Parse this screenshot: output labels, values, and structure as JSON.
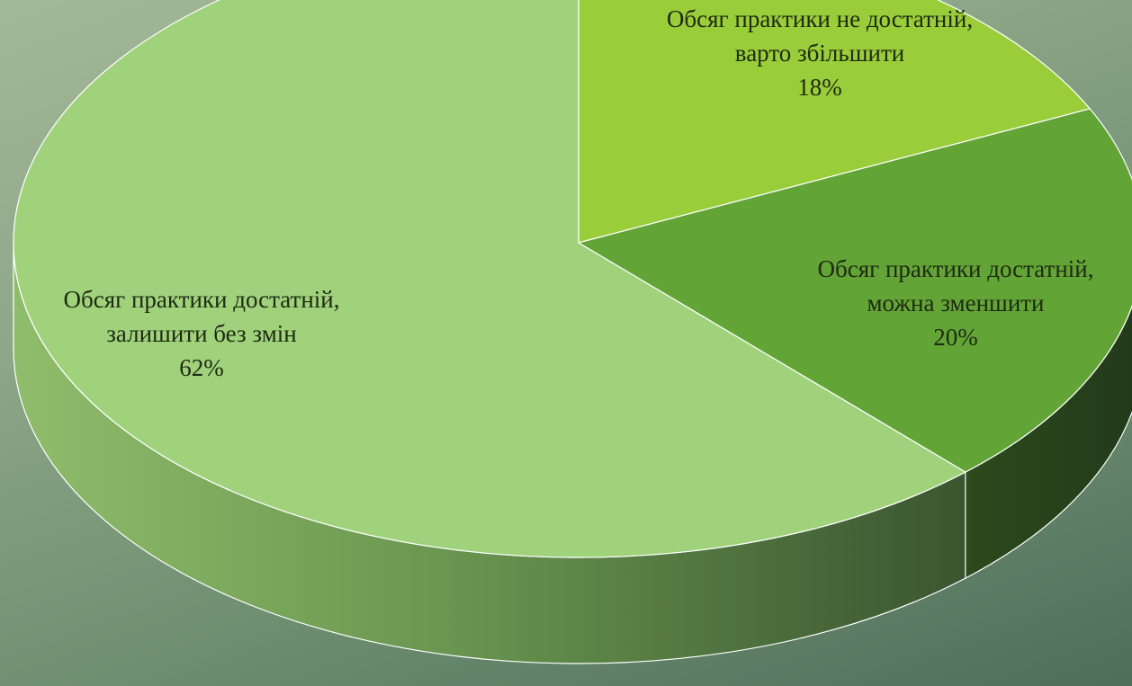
{
  "chart_data": {
    "type": "pie",
    "style": "3d",
    "slices": [
      {
        "label_line1": "Обсяг практики не достатній,",
        "label_line2": "варто збільшити",
        "value": 18,
        "value_label": "18%",
        "color": "#9acd3a"
      },
      {
        "label_line1": "Обсяг практики достатній,",
        "label_line2": "можна зменшити",
        "value": 20,
        "value_label": "20%",
        "color": "#62a436"
      },
      {
        "label_line1": "Обсяг практики достатній,",
        "label_line2": "залишити без змін",
        "value": 62,
        "value_label": "62%",
        "color": "#a0d27c"
      }
    ]
  }
}
